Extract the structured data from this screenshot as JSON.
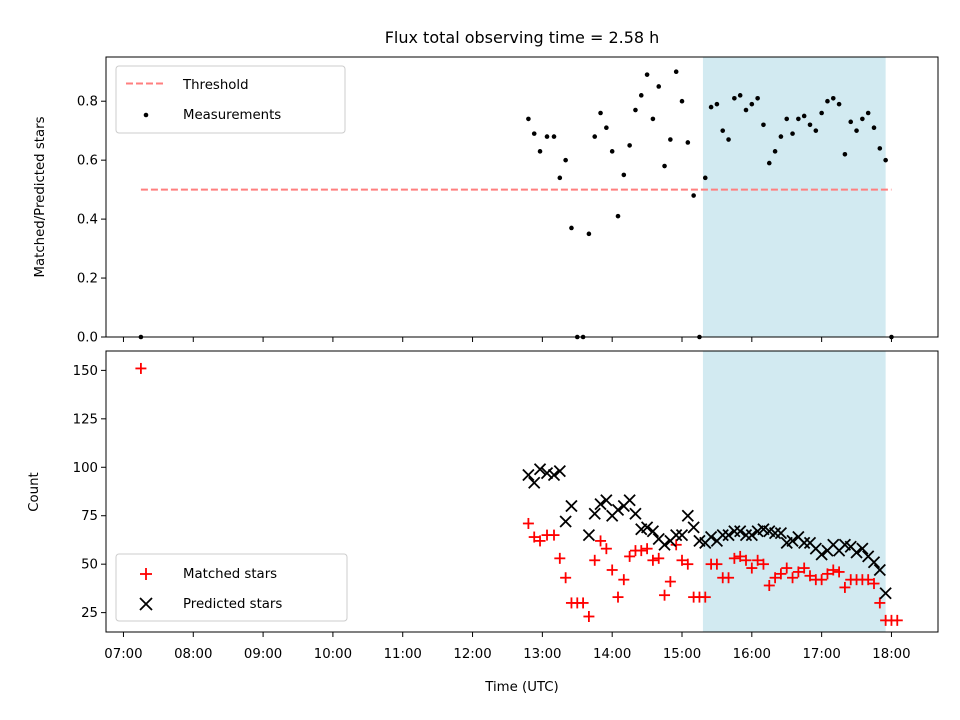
{
  "chart_data": [
    {
      "type": "scatter",
      "title": "Flux total observing time = 2.58 h",
      "xlabel": "",
      "ylabel": "Matched/Predicted stars",
      "xlim": [
        "06:45",
        "18:40"
      ],
      "ylim": [
        0,
        0.95
      ],
      "yticks": [
        "0.0",
        "0.2",
        "0.4",
        "0.6",
        "0.8"
      ],
      "yticks_values": [
        0,
        0.2,
        0.4,
        0.6,
        0.8
      ],
      "threshold": {
        "name": "Threshold",
        "value": 0.5,
        "x_start": "07:15",
        "x_end": "18:00",
        "color": "#ff7f7f",
        "style": "dashed"
      },
      "shaded_region": {
        "x_start": "15:18",
        "x_end": "17:55",
        "color": "#add8e6"
      },
      "legend": {
        "location": "upper-left",
        "entries": [
          "Threshold",
          "Measurements"
        ]
      },
      "series": [
        {
          "name": "Measurements",
          "color": "#000000",
          "marker": "dot",
          "x": [
            "07:15",
            "12:48",
            "12:53",
            "12:58",
            "13:04",
            "13:10",
            "13:15",
            "13:20",
            "13:25",
            "13:30",
            "13:35",
            "13:40",
            "13:45",
            "13:50",
            "13:55",
            "14:00",
            "14:05",
            "14:10",
            "14:15",
            "14:20",
            "14:25",
            "14:30",
            "14:35",
            "14:40",
            "14:45",
            "14:50",
            "14:55",
            "15:00",
            "15:05",
            "15:10",
            "15:15",
            "15:20",
            "15:25",
            "15:30",
            "15:35",
            "15:40",
            "15:45",
            "15:50",
            "15:55",
            "16:00",
            "16:05",
            "16:10",
            "16:15",
            "16:20",
            "16:25",
            "16:30",
            "16:35",
            "16:40",
            "16:45",
            "16:50",
            "16:55",
            "17:00",
            "17:05",
            "17:10",
            "17:15",
            "17:20",
            "17:25",
            "17:30",
            "17:35",
            "17:40",
            "17:45",
            "17:50",
            "17:55",
            "18:00"
          ],
          "y": [
            0.0,
            0.74,
            0.69,
            0.63,
            0.68,
            0.68,
            0.54,
            0.6,
            0.37,
            0.0,
            0.0,
            0.35,
            0.68,
            0.76,
            0.71,
            0.63,
            0.41,
            0.55,
            0.65,
            0.77,
            0.82,
            0.89,
            0.74,
            0.85,
            0.58,
            0.67,
            0.9,
            0.8,
            0.66,
            0.48,
            0.0,
            0.54,
            0.78,
            0.79,
            0.7,
            0.67,
            0.81,
            0.82,
            0.77,
            0.79,
            0.81,
            0.72,
            0.59,
            0.63,
            0.68,
            0.74,
            0.69,
            0.74,
            0.75,
            0.72,
            0.7,
            0.76,
            0.8,
            0.81,
            0.79,
            0.62,
            0.73,
            0.7,
            0.74,
            0.76,
            0.71,
            0.64,
            0.6,
            0.0
          ]
        }
      ]
    },
    {
      "type": "scatter",
      "xlabel": "Time (UTC)",
      "ylabel": "Count",
      "xlim": [
        "06:45",
        "18:40"
      ],
      "ylim": [
        15,
        160
      ],
      "xticks": [
        "07:00",
        "08:00",
        "09:00",
        "10:00",
        "11:00",
        "12:00",
        "13:00",
        "14:00",
        "15:00",
        "16:00",
        "17:00",
        "18:00"
      ],
      "yticks": [
        "25",
        "50",
        "75",
        "100",
        "125",
        "150"
      ],
      "yticks_values": [
        25,
        50,
        75,
        100,
        125,
        150
      ],
      "shaded_region": {
        "x_start": "15:18",
        "x_end": "17:55",
        "color": "#add8e6"
      },
      "legend": {
        "location": "lower-left",
        "entries": [
          "Matched stars",
          "Predicted stars"
        ]
      },
      "series": [
        {
          "name": "Matched stars",
          "color": "#ff0000",
          "marker": "plus",
          "x": [
            "07:15",
            "12:48",
            "12:53",
            "12:58",
            "13:04",
            "13:10",
            "13:15",
            "13:20",
            "13:25",
            "13:30",
            "13:35",
            "13:40",
            "13:45",
            "13:50",
            "13:55",
            "14:00",
            "14:05",
            "14:10",
            "14:15",
            "14:20",
            "14:25",
            "14:30",
            "14:35",
            "14:40",
            "14:45",
            "14:50",
            "14:55",
            "15:00",
            "15:05",
            "15:10",
            "15:15",
            "15:20",
            "15:25",
            "15:30",
            "15:35",
            "15:40",
            "15:45",
            "15:50",
            "15:55",
            "16:00",
            "16:05",
            "16:10",
            "16:15",
            "16:20",
            "16:25",
            "16:30",
            "16:35",
            "16:40",
            "16:45",
            "16:50",
            "16:55",
            "17:00",
            "17:05",
            "17:10",
            "17:15",
            "17:20",
            "17:25",
            "17:30",
            "17:35",
            "17:40",
            "17:45",
            "17:50",
            "17:55",
            "18:00",
            "18:05"
          ],
          "y": [
            151,
            71,
            64,
            62,
            65,
            65,
            53,
            43,
            30,
            30,
            30,
            23,
            52,
            62,
            58,
            47,
            33,
            42,
            54,
            57,
            57,
            58,
            52,
            53,
            34,
            41,
            60,
            52,
            50,
            33,
            33,
            33,
            50,
            50,
            43,
            43,
            53,
            54,
            52,
            48,
            52,
            50,
            39,
            43,
            45,
            48,
            43,
            46,
            48,
            44,
            42,
            42,
            45,
            47,
            46,
            38,
            42,
            42,
            42,
            42,
            40,
            30,
            21,
            21,
            21
          ]
        },
        {
          "name": "Predicted stars",
          "color": "#000000",
          "marker": "x",
          "x": [
            "12:48",
            "12:53",
            "12:58",
            "13:04",
            "13:10",
            "13:15",
            "13:20",
            "13:25",
            "13:40",
            "13:45",
            "13:50",
            "13:55",
            "14:00",
            "14:05",
            "14:10",
            "14:15",
            "14:20",
            "14:25",
            "14:30",
            "14:35",
            "14:40",
            "14:45",
            "14:50",
            "14:55",
            "15:00",
            "15:05",
            "15:10",
            "15:15",
            "15:20",
            "15:25",
            "15:30",
            "15:35",
            "15:40",
            "15:45",
            "15:50",
            "15:55",
            "16:00",
            "16:05",
            "16:10",
            "16:15",
            "16:20",
            "16:25",
            "16:30",
            "16:35",
            "16:40",
            "16:45",
            "16:50",
            "16:55",
            "17:00",
            "17:05",
            "17:10",
            "17:15",
            "17:20",
            "17:25",
            "17:30",
            "17:35",
            "17:40",
            "17:45",
            "17:50",
            "17:55"
          ],
          "y": [
            96,
            92,
            99,
            97,
            96,
            98,
            72,
            80,
            65,
            76,
            81,
            83,
            75,
            78,
            80,
            83,
            76,
            68,
            69,
            67,
            63,
            60,
            62,
            65,
            65,
            75,
            69,
            62,
            61,
            64,
            62,
            65,
            65,
            67,
            67,
            65,
            65,
            67,
            68,
            67,
            66,
            66,
            61,
            62,
            64,
            61,
            61,
            58,
            55,
            57,
            60,
            57,
            60,
            59,
            56,
            58,
            54,
            51,
            47,
            35
          ]
        }
      ]
    }
  ]
}
